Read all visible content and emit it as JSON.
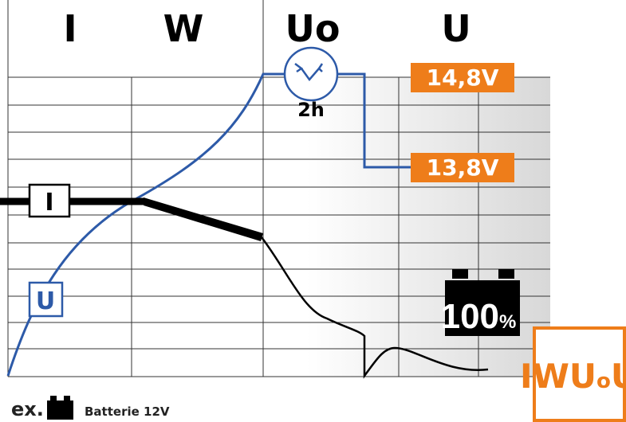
{
  "phases": [
    "I",
    "W",
    "Uo",
    "U"
  ],
  "timer": "2h",
  "voltages": [
    "14,8V",
    "13,8V"
  ],
  "current_label": "I",
  "voltage_label": "U",
  "battery_charge": [
    "100",
    "%"
  ],
  "logo": [
    "IWU",
    "o",
    "U"
  ],
  "footer": {
    "prefix": "ex.",
    "battery": "Batterie 12V"
  }
}
